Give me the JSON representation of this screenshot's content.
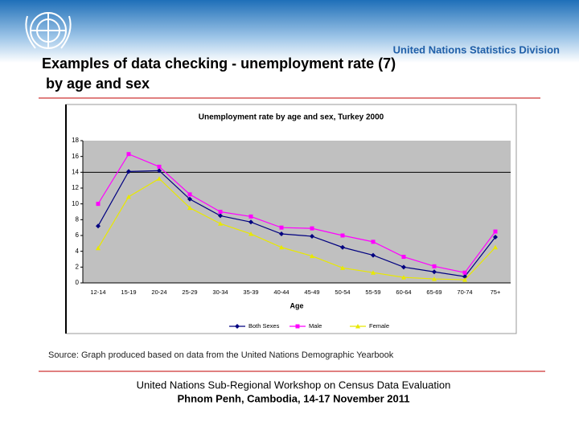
{
  "header": {
    "division": "United Nations Statistics Division"
  },
  "slide": {
    "title_line1": "Examples of data checking - unemployment rate (7)",
    "title_line2": "by age and sex",
    "source": "Source: Graph produced based on data from the United Nations Demographic Yearbook",
    "footer_line1": "United Nations Sub-Regional Workshop on Census Data Evaluation",
    "footer_line2": "Phnom Penh, Cambodia, 14-17 November 2011"
  },
  "chart_data": {
    "type": "line",
    "title": "Unemployment rate by age and sex, Turkey 2000",
    "x_label": "Age",
    "categories": [
      "12-14",
      "15-19",
      "20-24",
      "25-29",
      "30-34",
      "35-39",
      "40-44",
      "45-49",
      "50-54",
      "55-59",
      "60-64",
      "65-69",
      "70-74",
      "75+"
    ],
    "series": [
      {
        "name": "Both Sexes",
        "color": "#000080",
        "marker": "diamond",
        "values": [
          7.2,
          14.1,
          14.2,
          10.6,
          8.5,
          7.7,
          6.2,
          5.9,
          4.5,
          3.5,
          2.0,
          1.4,
          0.8,
          5.8
        ]
      },
      {
        "name": "Male",
        "color": "#ff00ff",
        "marker": "square",
        "values": [
          10.0,
          16.3,
          14.7,
          11.2,
          9.0,
          8.4,
          7.0,
          6.9,
          6.0,
          5.2,
          3.3,
          2.1,
          1.3,
          6.5
        ]
      },
      {
        "name": "Female",
        "color": "#e8e800",
        "marker": "triangle",
        "values": [
          4.4,
          10.9,
          13.2,
          9.5,
          7.5,
          6.2,
          4.5,
          3.4,
          1.9,
          1.3,
          0.7,
          0.5,
          0.4,
          4.5
        ]
      }
    ],
    "reference_line": 14,
    "ylim": [
      0,
      18
    ],
    "yticks": [
      0,
      2,
      4,
      6,
      8,
      10,
      12,
      14,
      16,
      18
    ],
    "legend": "bottom"
  }
}
